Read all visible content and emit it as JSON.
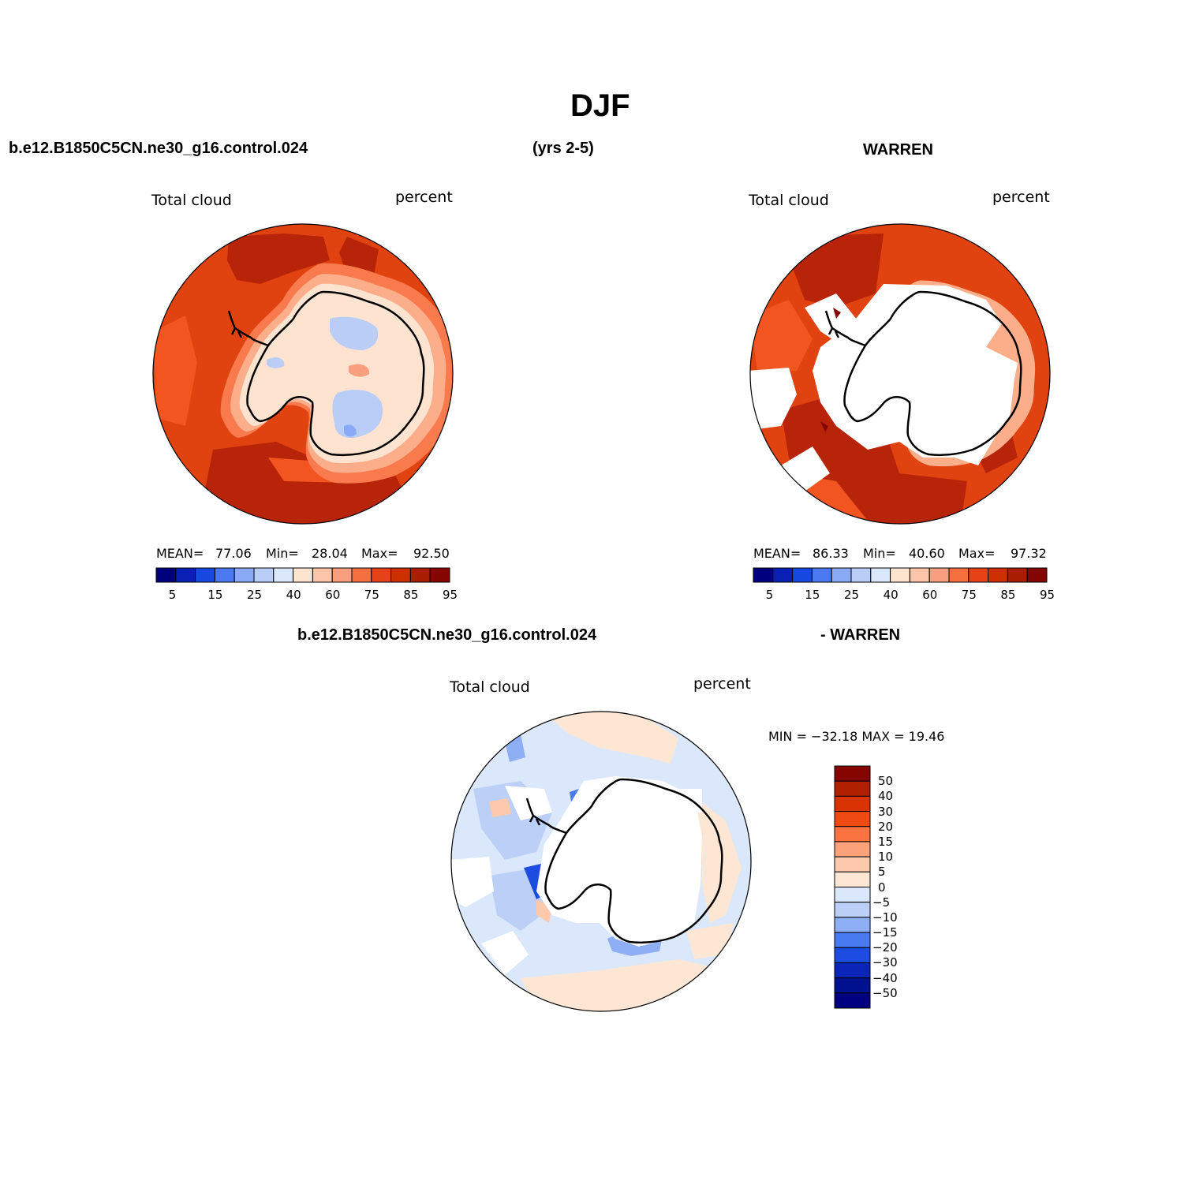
{
  "title": "DJF",
  "header": {
    "case": "b.e12.B1850C5CN.ne30_g16.control.024",
    "years": "(yrs 2-5)",
    "obs": "WARREN"
  },
  "diff_header": {
    "case": "b.e12.B1850C5CN.ne30_g16.control.024",
    "obs": "- WARREN"
  },
  "panels": [
    {
      "variable": "Total cloud",
      "units": "percent",
      "mean_label": "MEAN=",
      "mean": "77.06",
      "min_label": "Min=",
      "min": "28.04",
      "max_label": "Max=",
      "max": "92.50"
    },
    {
      "variable": "Total cloud",
      "units": "percent",
      "mean_label": "MEAN=",
      "mean": "86.33",
      "min_label": "Min=",
      "min": "40.60",
      "max_label": "Max=",
      "max": "97.32"
    }
  ],
  "diff_panel": {
    "variable": "Total cloud",
    "units": "percent",
    "minmax": "MIN = −32.18 MAX =  19.46"
  },
  "colorbar": {
    "ticks": [
      "5",
      "15",
      "25",
      "40",
      "60",
      "75",
      "85",
      "95"
    ],
    "colors": [
      "#00007f",
      "#0a1fb3",
      "#1749e0",
      "#4a79f2",
      "#8aaaf5",
      "#b9cdf7",
      "#dbe8fb",
      "#fde4cf",
      "#fcc4a8",
      "#f99f7f",
      "#f4703f",
      "#e54218",
      "#cc3000",
      "#a91d00",
      "#850500"
    ]
  },
  "diff_colorbar": {
    "labels": [
      "50",
      "40",
      "30",
      "20",
      "15",
      "10",
      "5",
      "0",
      "−5",
      "−10",
      "−15",
      "−20",
      "−30",
      "−40",
      "−50"
    ],
    "colors": [
      "#850500",
      "#b01f00",
      "#d83300",
      "#ef4a12",
      "#fb7340",
      "#fca27b",
      "#fdc9ad",
      "#fde6d3",
      "#dbe8fb",
      "#bcd0f7",
      "#8eaef5",
      "#4a7af0",
      "#1c4de0",
      "#0a25b8",
      "#00118f",
      "#000080"
    ]
  }
}
